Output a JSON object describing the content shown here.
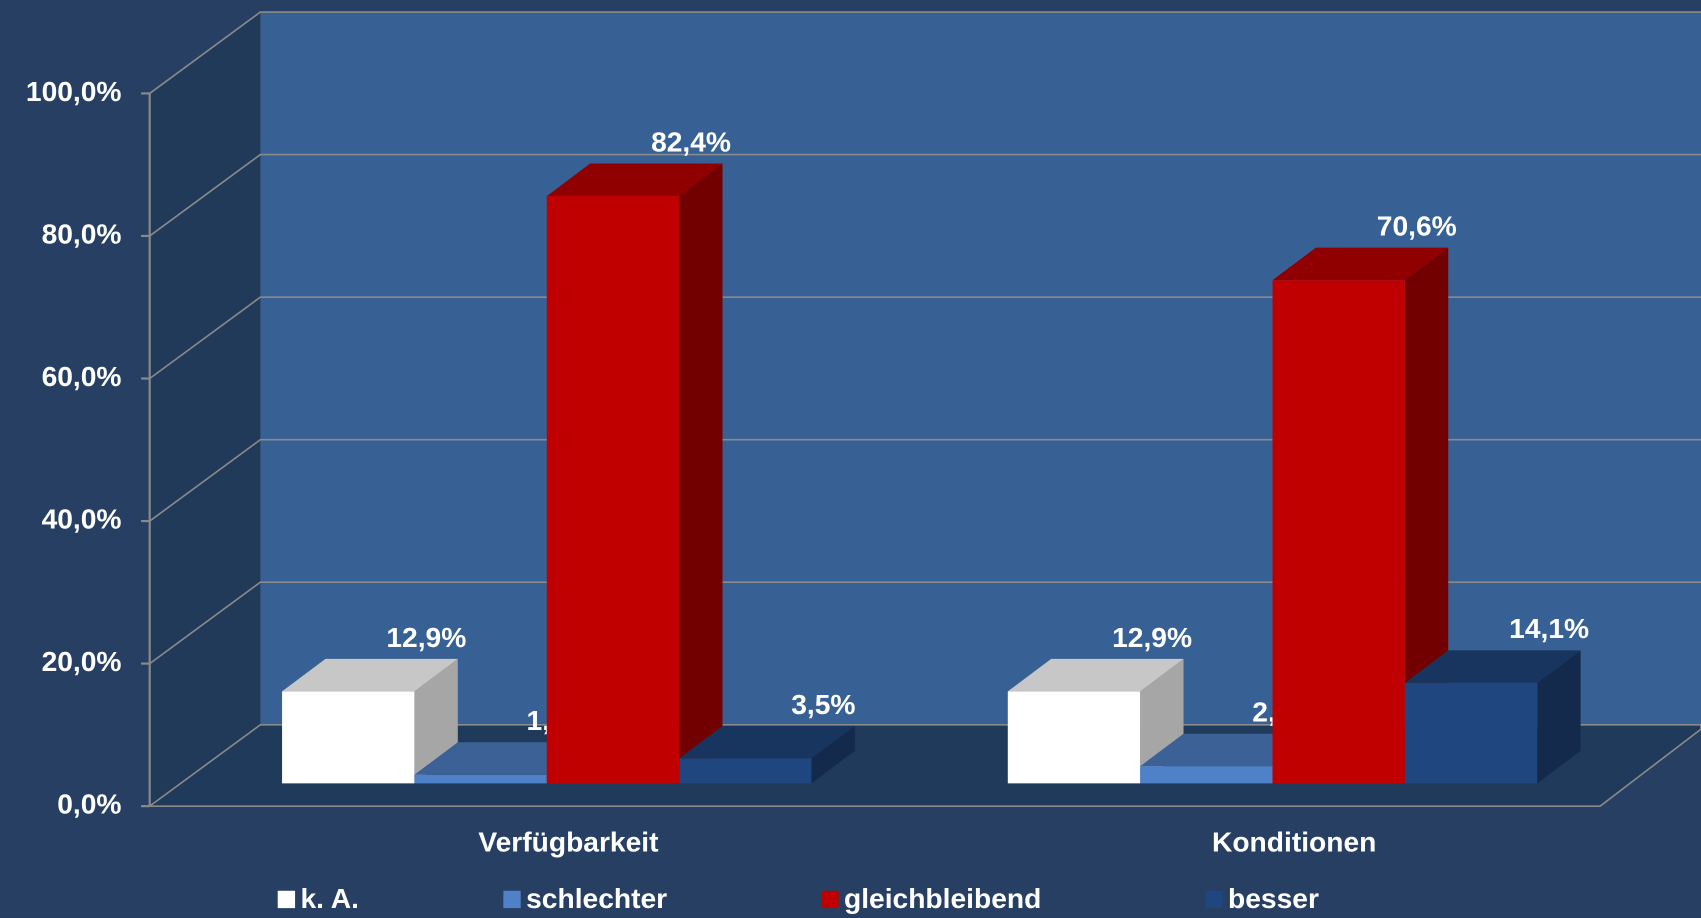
{
  "chart_data": {
    "type": "bar3d",
    "categories": [
      "Verfügbarkeit",
      "Konditionen"
    ],
    "series": [
      {
        "name": "k. A.",
        "color": "#ffffff",
        "values": [
          12.9,
          12.9
        ],
        "value_labels": [
          "12,9%",
          "12,9%"
        ]
      },
      {
        "name": "schlechter",
        "color": "#4f81c8",
        "values": [
          1.2,
          2.4
        ],
        "value_labels": [
          "1,2%",
          "2,4%"
        ]
      },
      {
        "name": "gleichbleibend",
        "color": "#c00000",
        "values": [
          82.4,
          70.6
        ],
        "value_labels": [
          "82,4%",
          "70,6%"
        ]
      },
      {
        "name": "besser",
        "color": "#1f467f",
        "values": [
          3.5,
          14.1
        ],
        "value_labels": [
          "3,5%",
          "14,1%"
        ]
      }
    ],
    "ylim": [
      0,
      100
    ],
    "yticks": [
      {
        "value": 0,
        "label": "0,0%"
      },
      {
        "value": 20,
        "label": "20,0%"
      },
      {
        "value": 40,
        "label": "40,0%"
      },
      {
        "value": 60,
        "label": "60,0%"
      },
      {
        "value": 80,
        "label": "80,0%"
      },
      {
        "value": 100,
        "label": "100,0%"
      }
    ],
    "grid": true,
    "legend": "bottom"
  }
}
